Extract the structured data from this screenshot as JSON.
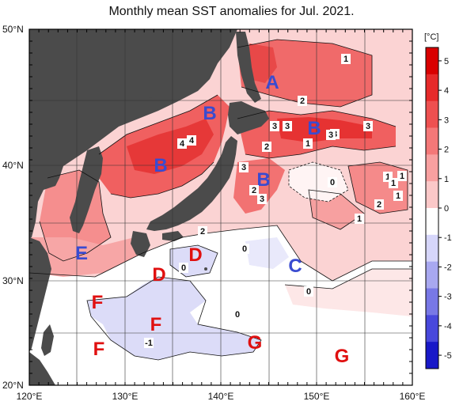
{
  "title": "Monthly mean SST anomalies for Jul. 2021.",
  "axes": {
    "lat_labels": [
      "50°N",
      "40°N",
      "30°N",
      "20°N"
    ],
    "lon_labels": [
      "120°E",
      "130°E",
      "140°E",
      "150°E",
      "160°E"
    ]
  },
  "colorbar": {
    "unit": "[°C]",
    "tick_labels": [
      "5",
      "4",
      "3",
      "2",
      "1",
      "0",
      "-1",
      "-2",
      "-3",
      "-4",
      "-5"
    ],
    "colors": [
      "#d90000",
      "#e62a2a",
      "#ee5050",
      "#f47878",
      "#f8a0a0",
      "#fbc8c8",
      "#ffffff",
      "#d6d6fa",
      "#a8a8f0",
      "#7878e6",
      "#4848dc",
      "#1818c8"
    ]
  },
  "region_labels": [
    {
      "text": "A",
      "color": "#3a4bd0"
    },
    {
      "text": "B",
      "color": "#3a4bd0"
    },
    {
      "text": "B",
      "color": "#3a4bd0"
    },
    {
      "text": "B",
      "color": "#3a4bd0"
    },
    {
      "text": "B",
      "color": "#3a4bd0"
    },
    {
      "text": "C",
      "color": "#3a4bd0"
    },
    {
      "text": "D",
      "color": "#e01010"
    },
    {
      "text": "D",
      "color": "#e01010"
    },
    {
      "text": "E",
      "color": "#3a4bd0"
    },
    {
      "text": "F",
      "color": "#e01010"
    },
    {
      "text": "F",
      "color": "#e01010"
    },
    {
      "text": "F",
      "color": "#e01010"
    },
    {
      "text": "G",
      "color": "#e01010"
    },
    {
      "text": "G",
      "color": "#e01010"
    }
  ],
  "contour_labels": [
    "1",
    "2",
    "3",
    "3",
    "3",
    "2",
    "1",
    "3",
    "3",
    "2",
    "3",
    "2",
    "3",
    "4",
    "4",
    "0",
    "1",
    "1",
    "2",
    "1",
    "1",
    "0",
    "0",
    "0",
    "0",
    "-1",
    "1"
  ]
}
